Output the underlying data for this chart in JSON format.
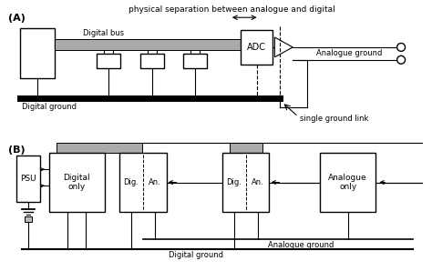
{
  "fig_width": 4.74,
  "fig_height": 2.98,
  "dpi": 100,
  "bg_color": "#ffffff",
  "gray_bus": "#aaaaaa",
  "black": "#000000",
  "light_gray": "#bbbbbb",
  "label_A": "(A)",
  "label_B": "(B)",
  "top_label": "physical separation between analogue and digital",
  "dig_bus_label": "Digital bus",
  "adc_label": "ADC",
  "analogue_ground_label": "Analogue ground",
  "digital_ground_label_A": "Digital ground",
  "single_ground_label": "single ground link",
  "psu_label": "PSU",
  "digital_only_label": "Digital\nonly",
  "dig_label": "Dig.",
  "an_label": "An.",
  "analogue_only_label": "Analogue\nonly",
  "analogue_ground_label_B": "Analogue ground",
  "digital_ground_label_B": "Digital ground"
}
